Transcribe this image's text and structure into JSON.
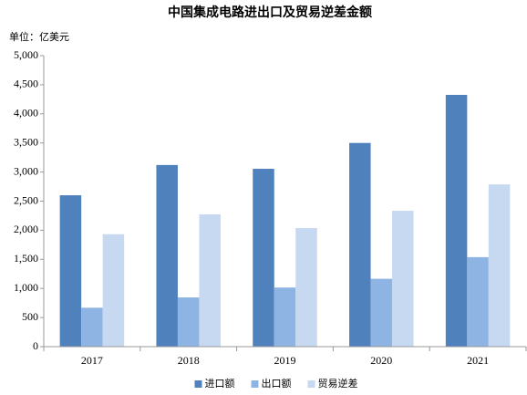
{
  "chart_data": {
    "type": "bar",
    "title": "中国集成电路进出口及贸易逆差金额",
    "unit_label": "单位：亿美元",
    "categories": [
      "2017",
      "2018",
      "2019",
      "2020",
      "2021"
    ],
    "series": [
      {
        "name": "进口额",
        "color": "#4f81bd",
        "values": [
          2601,
          3121,
          3056,
          3500,
          4326
        ]
      },
      {
        "name": "出口额",
        "color": "#8eb4e3",
        "values": [
          669,
          846,
          1016,
          1166,
          1538
        ]
      },
      {
        "name": "贸易逆差",
        "color": "#c6d9f1",
        "values": [
          1932,
          2274,
          2039,
          2334,
          2788
        ]
      }
    ],
    "ylim": [
      0,
      5000
    ],
    "yticks": [
      0,
      500,
      {
        "value": 1000,
        "label": "1,000"
      },
      {
        "value": 1500,
        "label": "1,500"
      },
      {
        "value": 2000,
        "label": "2,000"
      },
      {
        "value": 2500,
        "label": "2,500"
      },
      {
        "value": 3000,
        "label": "3,000"
      },
      {
        "value": 3500,
        "label": "3,500"
      },
      {
        "value": 4000,
        "label": "4,000"
      },
      {
        "value": 4500,
        "label": "4,500"
      },
      {
        "value": 5000,
        "label": "5,000"
      }
    ],
    "legend": "bottom"
  }
}
